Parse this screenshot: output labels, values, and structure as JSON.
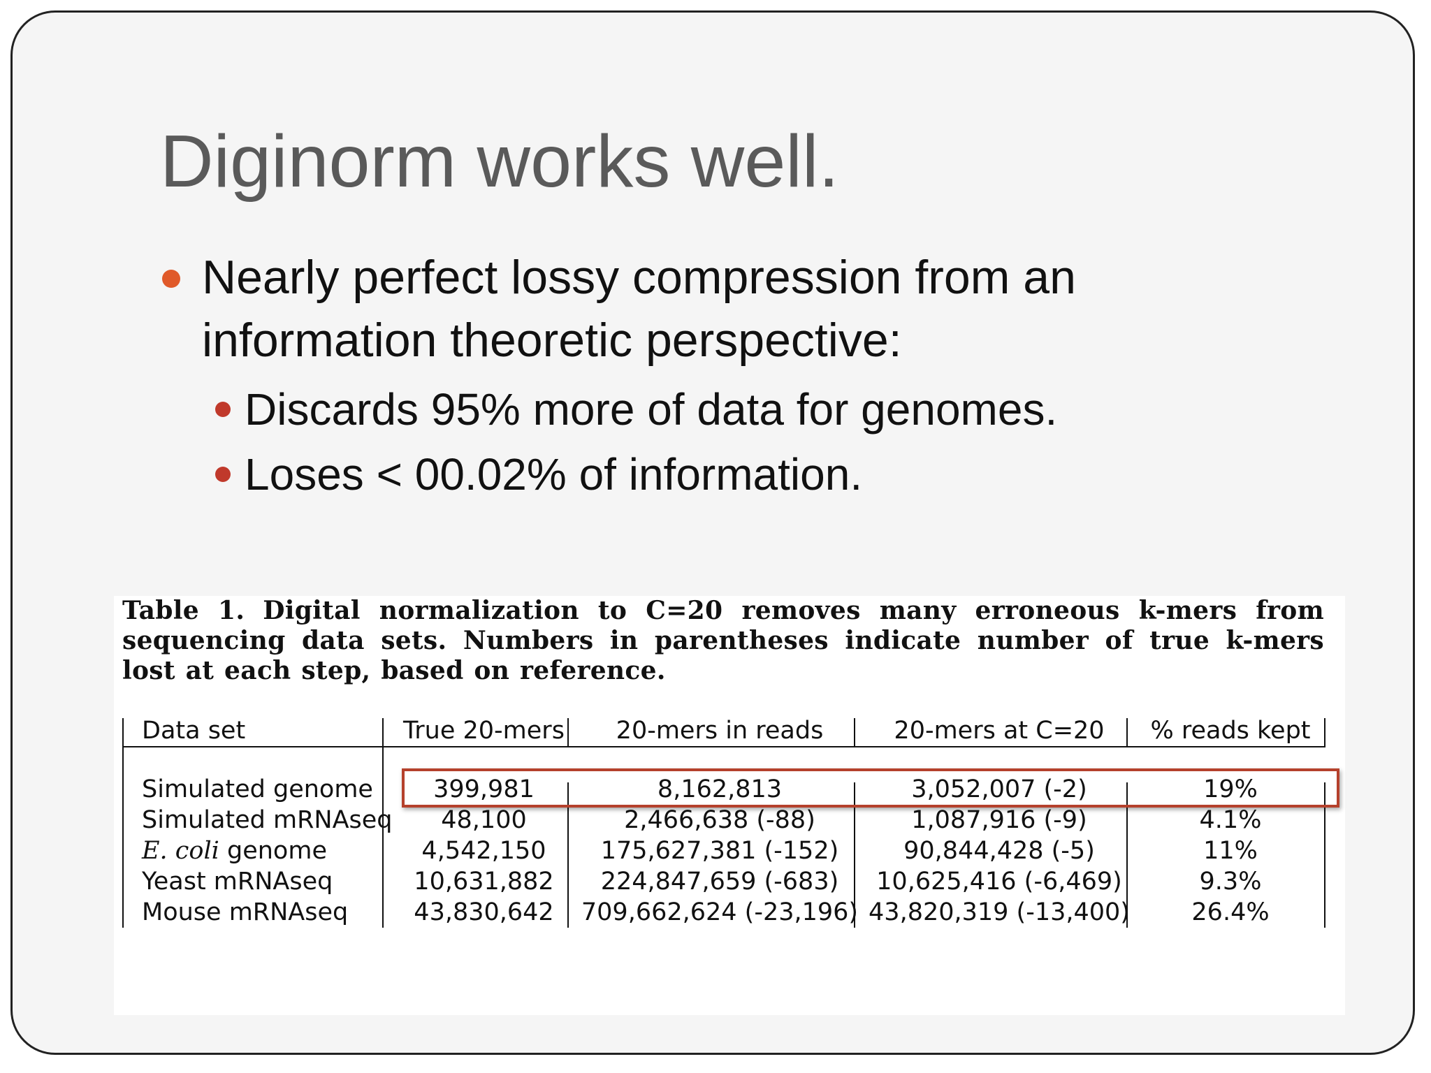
{
  "slide": {
    "title": "Diginorm works well.",
    "bullets": [
      {
        "level": 1,
        "lines": [
          "Nearly perfect lossy compression from an",
          "information theoretic perspective:"
        ],
        "dot_color": "#e05a2a"
      },
      {
        "level": 2,
        "lines": [
          "Discards 95% more of data for genomes."
        ],
        "dot_color": "#c0392b"
      },
      {
        "level": 2,
        "lines": [
          "Loses < 00.02% of information."
        ],
        "dot_color": "#c0392b"
      }
    ]
  },
  "table": {
    "caption_label": "Table 1.",
    "caption_text": "Digital normalization to C=20 removes many erroneous k-mers from sequencing data sets. Numbers in parentheses indicate number of true k-mers lost at each step, based on reference.",
    "columns": [
      "Data set",
      "True 20-mers",
      "20-mers in reads",
      "20-mers at C=20",
      "% reads kept"
    ],
    "rows": [
      {
        "dataset_prefix": "",
        "dataset_italic": "",
        "dataset": "Simulated genome",
        "true_20mers": "399,981",
        "in_reads": "8,162,813",
        "at_c20": "3,052,007 (-2)",
        "reads_kept": "19%"
      },
      {
        "dataset_prefix": "",
        "dataset_italic": "",
        "dataset": "Simulated mRNAseq",
        "true_20mers": "48,100",
        "in_reads": "2,466,638 (-88)",
        "at_c20": "1,087,916 (-9)",
        "reads_kept": "4.1%"
      },
      {
        "dataset_prefix": "",
        "dataset_italic": "E. coli",
        "dataset": " genome",
        "true_20mers": "4,542,150",
        "in_reads": "175,627,381 (-152)",
        "at_c20": "90,844,428 (-5)",
        "reads_kept": "11%"
      },
      {
        "dataset_prefix": "",
        "dataset_italic": "",
        "dataset": "Yeast mRNAseq",
        "true_20mers": "10,631,882",
        "in_reads": "224,847,659 (-683)",
        "at_c20": "10,625,416 (-6,469)",
        "reads_kept": "9.3%"
      },
      {
        "dataset_prefix": "",
        "dataset_italic": "",
        "dataset": "Mouse mRNAseq",
        "true_20mers": "43,830,642",
        "in_reads": "709,662,624 (-23,196)",
        "at_c20": "43,820,319 (-13,400)",
        "reads_kept": "26.4%"
      }
    ],
    "highlight_color": "#b5412c"
  }
}
